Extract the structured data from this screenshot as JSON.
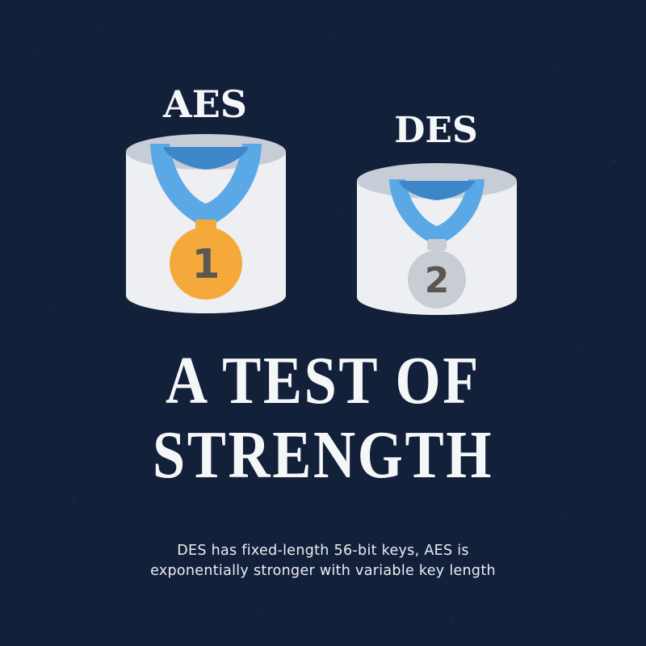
{
  "podiums": {
    "first": {
      "label": "AES",
      "place": "1",
      "medal_color": "#f6a93b",
      "ribbon_color": "#5aa9e6",
      "icon": "gold-medal-icon"
    },
    "second": {
      "label": "DES",
      "place": "2",
      "medal_color": "#c8ccd3",
      "ribbon_color": "#5aa9e6",
      "icon": "silver-medal-icon"
    }
  },
  "headline": {
    "line1": "A TEST OF",
    "line2": "STRENGTH"
  },
  "caption": {
    "line1": "DES has fixed-length 56-bit keys, AES is",
    "line2": "exponentially stronger with variable key length"
  },
  "colors": {
    "background": "#13203a",
    "text": "#f5f6f8",
    "podium": "#eeeff2"
  }
}
